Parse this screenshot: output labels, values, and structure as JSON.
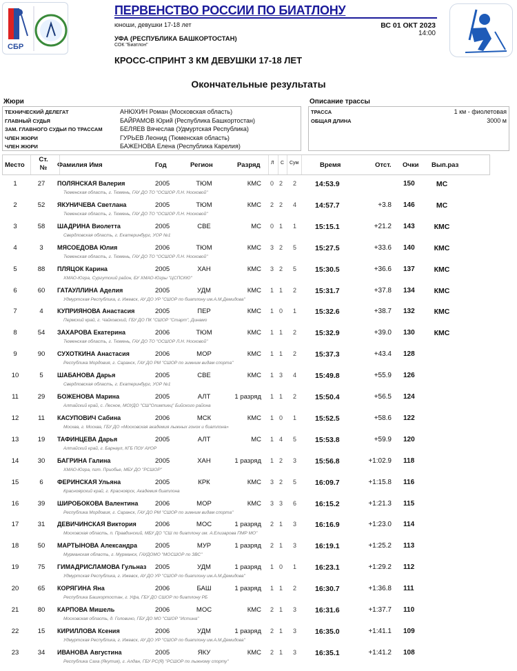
{
  "header": {
    "title": "ПЕРВЕНСТВО РОССИИ ПО БИАТЛОНУ",
    "category": "юноши, девушки 17-18 лет",
    "date": "ВС 01 ОКТ 2023",
    "time": "14:00",
    "location": "УФА (РЕСПУБЛИКА БАШКОРТОСТАН)",
    "venue": "СОК \"Биатлон\"",
    "race": "КРОСС-СПРИНТ 3 КМ ДЕВУШКИ 17-18 ЛЕТ",
    "results_title": "Окончательные результаты",
    "logo_text": "СБР"
  },
  "jury": {
    "title": "Жюри",
    "items": [
      {
        "role": "ТЕХНИЧЕСКИЙ ДЕЛЕГАТ",
        "name": "АНЮХИН Роман (Московская область)"
      },
      {
        "role": "ГЛАВНЫЙ СУДЬЯ",
        "name": "БАЙРАМОВ Юрий (Республика Башкортостан)"
      },
      {
        "role": "ЗАМ. ГЛАВНОГО СУДЬИ ПО ТРАССАМ",
        "name": "БЕЛЯЕВ Вячеслав (Удмуртская Республика)"
      },
      {
        "role": "ЧЛЕН ЖЮРИ",
        "name": "ГУРЬЕВ Леонид (Тюменская область)"
      },
      {
        "role": "ЧЛЕН ЖЮРИ",
        "name": "БАЖЕНОВА Елена (Республика Карелия)"
      }
    ]
  },
  "course": {
    "title": "Описание трассы",
    "items": [
      {
        "label": "ТРАССА",
        "value": "1 км - фиолетовая"
      },
      {
        "label": "ОБЩАЯ ДЛИНА",
        "value": "3000 м"
      }
    ]
  },
  "columns": {
    "place": "Место",
    "bib": "Ст. №",
    "name": "Фамилия Имя",
    "year": "Год",
    "region": "Регион",
    "rank": "Разряд",
    "l": "Л",
    "s": "С",
    "sum": "Сум",
    "time": "Время",
    "behind": "Отст.",
    "points": "Очки",
    "achieved": "Вып.разр"
  },
  "rows": [
    {
      "place": "1",
      "bib": "27",
      "name": "ПОЛЯНСКАЯ Валерия",
      "year": "2005",
      "region": "ТЮМ",
      "rank": "КМС",
      "l": "0",
      "s": "2",
      "sum": "2",
      "time": "14:53.9",
      "behind": "",
      "points": "150",
      "achieved": "МС",
      "club": "Тюменская область,  г. Тюмень, ГАУ ДО ТО \"ОСШОР Л.Н. Носковой\""
    },
    {
      "place": "2",
      "bib": "52",
      "name": "ЯКУНИЧЕВА Светлана",
      "year": "2005",
      "region": "ТЮМ",
      "rank": "КМС",
      "l": "2",
      "s": "2",
      "sum": "4",
      "time": "14:57.7",
      "behind": "+3.8",
      "points": "146",
      "achieved": "МС",
      "club": "Тюменская область,  г. Тюмень, ГАУ ДО ТО \"ОСШОР Л.Н. Носковой\""
    },
    {
      "place": "3",
      "bib": "58",
      "name": "ШАДРИНА Виолетта",
      "year": "2005",
      "region": "СВЕ",
      "rank": "МС",
      "l": "0",
      "s": "1",
      "sum": "1",
      "time": "15:15.1",
      "behind": "+21.2",
      "points": "143",
      "achieved": "КМС",
      "club": "Свердловская область,  г. Екатеринбург, УОР №1"
    },
    {
      "place": "4",
      "bib": "3",
      "name": "МЯСОЕДОВА Юлия",
      "year": "2006",
      "region": "ТЮМ",
      "rank": "КМС",
      "l": "3",
      "s": "2",
      "sum": "5",
      "time": "15:27.5",
      "behind": "+33.6",
      "points": "140",
      "achieved": "КМС",
      "club": "Тюменская область,  г. Тюмень, ГАУ ДО ТО \"ОСШОР Л.Н. Носковой\""
    },
    {
      "place": "5",
      "bib": "88",
      "name": "ПЛЯЦОК Карина",
      "year": "2005",
      "region": "ХАН",
      "rank": "КМС",
      "l": "3",
      "s": "2",
      "sum": "5",
      "time": "15:30.5",
      "behind": "+36.6",
      "points": "137",
      "achieved": "КМС",
      "club": "ХМАО-Югра,  Сургутский район, БУ ХМАО-Югры \"ЦСПСКЮ\""
    },
    {
      "place": "6",
      "bib": "60",
      "name": "ГАТАУЛЛИНА Аделия",
      "year": "2005",
      "region": "УДМ",
      "rank": "КМС",
      "l": "1",
      "s": "1",
      "sum": "2",
      "time": "15:31.7",
      "behind": "+37.8",
      "points": "134",
      "achieved": "КМС",
      "club": "Удмуртская Республика,  г. Ижевск, АУ ДО УР \"СШОР по биатлону им.А.М.Демидова\""
    },
    {
      "place": "7",
      "bib": "4",
      "name": "КУПРИЯНОВА Анастасия",
      "year": "2005",
      "region": "ПЕР",
      "rank": "КМС",
      "l": "1",
      "s": "0",
      "sum": "1",
      "time": "15:32.6",
      "behind": "+38.7",
      "points": "132",
      "achieved": "КМС",
      "club": "Пермский край,  г. Чайковский, ГБУ ДО ПК \"СШОР \"Старт\", Динамо"
    },
    {
      "place": "8",
      "bib": "54",
      "name": "ЗАХАРОВА Екатерина",
      "year": "2006",
      "region": "ТЮМ",
      "rank": "КМС",
      "l": "1",
      "s": "1",
      "sum": "2",
      "time": "15:32.9",
      "behind": "+39.0",
      "points": "130",
      "achieved": "КМС",
      "club": "Тюменская область,  г. Тюмень, ГАУ ДО ТО \"ОСШОР Л.Н. Носковой\""
    },
    {
      "place": "9",
      "bib": "90",
      "name": "СУХОТКИНА Анастасия",
      "year": "2006",
      "region": "МОР",
      "rank": "КМС",
      "l": "1",
      "s": "1",
      "sum": "2",
      "time": "15:37.3",
      "behind": "+43.4",
      "points": "128",
      "achieved": "",
      "club": "Республика Мордовия,  г. Саранск, ГАУ ДО РМ \"СШОР по зимним видам спорта\""
    },
    {
      "place": "10",
      "bib": "5",
      "name": "ШАБАНОВА Дарья",
      "year": "2005",
      "region": "СВЕ",
      "rank": "КМС",
      "l": "1",
      "s": "3",
      "sum": "4",
      "time": "15:49.8",
      "behind": "+55.9",
      "points": "126",
      "achieved": "",
      "club": "Свердловская область,  г. Екатеринбург, УОР №1"
    },
    {
      "place": "11",
      "bib": "29",
      "name": "БОЖЕНОВА Марина",
      "year": "2005",
      "region": "АЛТ",
      "rank": "1 разряд",
      "l": "1",
      "s": "1",
      "sum": "2",
      "time": "15:50.4",
      "behind": "+56.5",
      "points": "124",
      "achieved": "",
      "club": "Алтайский край,  с. Лесное, МОУДО \"СШ\"Олимпиец\" Бийского района"
    },
    {
      "place": "12",
      "bib": "11",
      "name": "КАСУПОВИЧ Сабина",
      "year": "2006",
      "region": "МСК",
      "rank": "КМС",
      "l": "1",
      "s": "0",
      "sum": "1",
      "time": "15:52.5",
      "behind": "+58.6",
      "points": "122",
      "achieved": "",
      "club": "Москва,  г. Москва, ГБУ ДО «Московская академия лыжных гонок и биатлона»"
    },
    {
      "place": "13",
      "bib": "19",
      "name": "ТАФИНЦЕВА Дарья",
      "year": "2005",
      "region": "АЛТ",
      "rank": "МС",
      "l": "1",
      "s": "4",
      "sum": "5",
      "time": "15:53.8",
      "behind": "+59.9",
      "points": "120",
      "achieved": "",
      "club": "Алтайский край,  г. Барнаул, КГБ ПОУ АУОР"
    },
    {
      "place": "14",
      "bib": "30",
      "name": "БАГРИНА Галина",
      "year": "2005",
      "region": "ХАН",
      "rank": "1 разряд",
      "l": "1",
      "s": "2",
      "sum": "3",
      "time": "15:56.8",
      "behind": "+1:02.9",
      "points": "118",
      "achieved": "",
      "club": "ХМАО-Югра,  пгт. Приобье, МБУ ДО \"РСШОР\""
    },
    {
      "place": "15",
      "bib": "6",
      "name": "ФЕРИНСКАЯ Ульяна",
      "year": "2005",
      "region": "КРК",
      "rank": "КМС",
      "l": "3",
      "s": "2",
      "sum": "5",
      "time": "16:09.7",
      "behind": "+1:15.8",
      "points": "116",
      "achieved": "",
      "club": "Красноярский край,  г. Красноярск, Академия биатлона"
    },
    {
      "place": "16",
      "bib": "39",
      "name": "ШИРОБОКОВА Валентина",
      "year": "2006",
      "region": "МОР",
      "rank": "КМС",
      "l": "3",
      "s": "3",
      "sum": "6",
      "time": "16:15.2",
      "behind": "+1:21.3",
      "points": "115",
      "achieved": "",
      "club": "Республика Мордовия,  г. Саранск, ГАУ ДО РМ \"СШОР по зимним видам спорта\""
    },
    {
      "place": "17",
      "bib": "31",
      "name": "ДЕВИЧИНСКАЯ Виктория",
      "year": "2006",
      "region": "МОС",
      "rank": "1 разряд",
      "l": "2",
      "s": "1",
      "sum": "3",
      "time": "16:16.9",
      "behind": "+1:23.0",
      "points": "114",
      "achieved": "",
      "club": "Московская область,  п. Правдинский, МБУ ДО \"СШ по биатлону им. А.Елизарова ПМР МО\""
    },
    {
      "place": "18",
      "bib": "50",
      "name": "МАРТЫНОВА Александра",
      "year": "2005",
      "region": "МУР",
      "rank": "1 разряд",
      "l": "2",
      "s": "1",
      "sum": "3",
      "time": "16:19.1",
      "behind": "+1:25.2",
      "points": "113",
      "achieved": "",
      "club": "Мурманская область,  г. Мурманск, ГАУДОМО \"МОСШОР по ЗВС\""
    },
    {
      "place": "19",
      "bib": "75",
      "name": "ГИМАДРИСЛАМОВА Гульназ",
      "year": "2005",
      "region": "УДМ",
      "rank": "1 разряд",
      "l": "1",
      "s": "0",
      "sum": "1",
      "time": "16:23.1",
      "behind": "+1:29.2",
      "points": "112",
      "achieved": "",
      "club": "Удмуртская Республика,  г. Ижевск, АУ ДО УР \"СШОР по биатлону им.А.М.Демидова\""
    },
    {
      "place": "20",
      "bib": "65",
      "name": "КОРЯГИНА Яна",
      "year": "2006",
      "region": "БАШ",
      "rank": "1 разряд",
      "l": "1",
      "s": "1",
      "sum": "2",
      "time": "16:30.7",
      "behind": "+1:36.8",
      "points": "111",
      "achieved": "",
      "club": "Республика Башкортостан,  г. Уфа, ГБУ ДО СШОР по биатлону РБ"
    },
    {
      "place": "21",
      "bib": "80",
      "name": "КАРПОВА Мишель",
      "year": "2006",
      "region": "МОС",
      "rank": "КМС",
      "l": "2",
      "s": "1",
      "sum": "3",
      "time": "16:31.6",
      "behind": "+1:37.7",
      "points": "110",
      "achieved": "",
      "club": "Московская область,  д. Головино, ГБУ ДО МО \"СШОР \"Истина\""
    },
    {
      "place": "22",
      "bib": "15",
      "name": "КИРИЛЛОВА Ксения",
      "year": "2006",
      "region": "УДМ",
      "rank": "1 разряд",
      "l": "2",
      "s": "1",
      "sum": "3",
      "time": "16:35.0",
      "behind": "+1:41.1",
      "points": "109",
      "achieved": "",
      "club": "Удмуртская Республика,  г. Ижевск, АУ ДО УР \"СШОР по биатлону им.А.М.Демидова\""
    },
    {
      "place": "23",
      "bib": "34",
      "name": "ИВАНОВА Августина",
      "year": "2005",
      "region": "ЯКУ",
      "rank": "КМС",
      "l": "2",
      "s": "1",
      "sum": "3",
      "time": "16:35.1",
      "behind": "+1:41.2",
      "points": "108",
      "achieved": "",
      "club": "Республика Саха (Якутия),  г. Алдан, ГБУ РС(Я) \"РСШОР по лыжному спорту\""
    }
  ]
}
